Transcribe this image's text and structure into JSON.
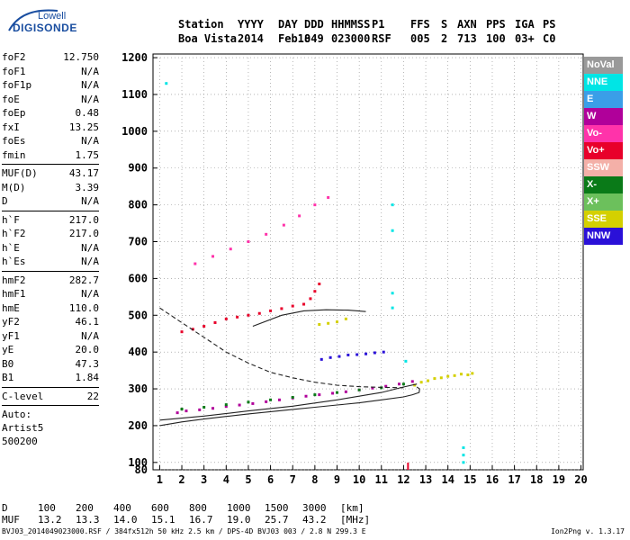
{
  "logo": {
    "line1": "Lowell",
    "line2": "DIGISONDE"
  },
  "header": {
    "row1": [
      "Station",
      "YYYY",
      "DAY",
      "DDD",
      "HHMMSS",
      "P1",
      "FFS",
      "S",
      "AXN",
      "PPS",
      "IGA",
      "PS"
    ],
    "row2": [
      "Boa Vista",
      "2014",
      "Feb18",
      "049",
      "023000",
      "RSF",
      "005",
      "2",
      "713",
      "100",
      "03+",
      "C0"
    ]
  },
  "params": [
    {
      "group": [
        {
          "name": "foF2",
          "value": "12.750"
        },
        {
          "name": "foF1",
          "value": "N/A"
        },
        {
          "name": "foF1p",
          "value": "N/A"
        },
        {
          "name": "foE",
          "value": "N/A"
        },
        {
          "name": "foEp",
          "value": "0.48"
        },
        {
          "name": "fxI",
          "value": "13.25"
        },
        {
          "name": "foEs",
          "value": "N/A"
        },
        {
          "name": "fmin",
          "value": "1.75"
        }
      ]
    },
    {
      "group": [
        {
          "name": "MUF(D)",
          "value": "43.17"
        },
        {
          "name": "M(D)",
          "value": "3.39"
        },
        {
          "name": "D",
          "value": "N/A"
        }
      ]
    },
    {
      "group": [
        {
          "name": "h`F",
          "value": "217.0"
        },
        {
          "name": "h`F2",
          "value": "217.0"
        },
        {
          "name": "h`E",
          "value": "N/A"
        },
        {
          "name": "h`Es",
          "value": "N/A"
        }
      ]
    },
    {
      "group": [
        {
          "name": "hmF2",
          "value": "282.7"
        },
        {
          "name": "hmF1",
          "value": "N/A"
        },
        {
          "name": "hmE",
          "value": "110.0"
        },
        {
          "name": "yF2",
          "value": "46.1"
        },
        {
          "name": "yF1",
          "value": "N/A"
        },
        {
          "name": "yE",
          "value": "20.0"
        },
        {
          "name": "B0",
          "value": "47.3"
        },
        {
          "name": "B1",
          "value": "1.84"
        }
      ]
    },
    {
      "group": [
        {
          "name": "C-level",
          "value": "22"
        }
      ]
    }
  ],
  "auto": {
    "line1": "Auto:",
    "line2": "Artist5",
    "line3": "500200"
  },
  "legend": [
    {
      "label": "NoVal",
      "color": "#999999"
    },
    {
      "label": "NNE",
      "color": "#00e5e5"
    },
    {
      "label": "E",
      "color": "#3a9ee8"
    },
    {
      "label": "W",
      "color": "#b0009a"
    },
    {
      "label": "Vo-",
      "color": "#ff33aa"
    },
    {
      "label": "Vo+",
      "color": "#e8002a"
    },
    {
      "label": "SSW",
      "color": "#f4b0a8"
    },
    {
      "label": "X-",
      "color": "#0a7a18"
    },
    {
      "label": "X+",
      "color": "#6cc05c"
    },
    {
      "label": "SSE",
      "color": "#d4d000"
    },
    {
      "label": "NNW",
      "color": "#2a10d8"
    }
  ],
  "muf_table": {
    "d_label": "D",
    "d_values": [
      "100",
      "200",
      "400",
      "600",
      "800",
      "1000",
      "1500",
      "3000"
    ],
    "d_unit": "[km]",
    "muf_label": "MUF",
    "muf_values": [
      "13.2",
      "13.3",
      "14.0",
      "15.1",
      "16.7",
      "19.0",
      "25.7",
      "43.2"
    ],
    "muf_unit": "[MHz]"
  },
  "footer": {
    "left": "BVJ03_2014049023000.RSF / 384fx512h 50 kHz 2.5 km / DPS-4D BVJ03 003 / 2.8 N 299.3 E",
    "right": "Ion2Png v. 1.3.17"
  },
  "chart_data": {
    "type": "scatter",
    "xlim": [
      0.7,
      20.1
    ],
    "ylim": [
      80,
      1210
    ],
    "x_ticks": [
      1,
      2,
      3,
      4,
      5,
      6,
      7,
      8,
      9,
      10,
      11,
      12,
      13,
      14,
      15,
      16,
      17,
      18,
      19,
      20
    ],
    "y_ticks": [
      80,
      100,
      200,
      300,
      400,
      500,
      600,
      700,
      800,
      900,
      1000,
      1100,
      1200
    ],
    "grid": true,
    "series": [
      {
        "name": "",
        "color": "#b0009a",
        "points": [
          [
            1.8,
            235
          ],
          [
            2.2,
            240
          ],
          [
            2.8,
            243
          ],
          [
            3.4,
            247
          ],
          [
            4.0,
            252
          ],
          [
            4.6,
            256
          ],
          [
            5.2,
            260
          ],
          [
            5.8,
            265
          ],
          [
            6.4,
            270
          ],
          [
            7.0,
            275
          ],
          [
            7.6,
            280
          ],
          [
            8.2,
            284
          ],
          [
            8.8,
            288
          ],
          [
            9.4,
            292
          ],
          [
            10.0,
            297
          ],
          [
            10.6,
            302
          ],
          [
            11.2,
            307
          ],
          [
            11.8,
            313
          ],
          [
            12.4,
            320
          ]
        ]
      },
      {
        "name": "",
        "color": "#0a7a18",
        "points": [
          [
            2.0,
            245
          ],
          [
            3.0,
            250
          ],
          [
            4.0,
            257
          ],
          [
            5.0,
            264
          ],
          [
            6.0,
            270
          ],
          [
            7.0,
            277
          ],
          [
            8.0,
            284
          ],
          [
            9.0,
            290
          ],
          [
            10.0,
            297
          ],
          [
            11.0,
            303
          ],
          [
            12.0,
            313
          ]
        ]
      },
      {
        "name": "",
        "color": "#d4d000",
        "points": [
          [
            12.5,
            310
          ],
          [
            12.8,
            318
          ],
          [
            13.1,
            322
          ],
          [
            13.4,
            328
          ],
          [
            13.7,
            330
          ],
          [
            14.0,
            334
          ],
          [
            14.3,
            336
          ],
          [
            14.6,
            340
          ],
          [
            14.9,
            338
          ],
          [
            15.1,
            342
          ],
          [
            8.2,
            475
          ],
          [
            8.6,
            478
          ],
          [
            9.0,
            482
          ],
          [
            9.4,
            490
          ]
        ]
      },
      {
        "name": "",
        "color": "#2a10d8",
        "points": [
          [
            8.3,
            380
          ],
          [
            8.7,
            385
          ],
          [
            9.1,
            388
          ],
          [
            9.5,
            392
          ],
          [
            9.9,
            393
          ],
          [
            10.3,
            395
          ],
          [
            10.7,
            398
          ],
          [
            11.1,
            400
          ]
        ]
      },
      {
        "name": "",
        "color": "#e8002a",
        "points": [
          [
            2.0,
            455
          ],
          [
            2.5,
            462
          ],
          [
            3.0,
            470
          ],
          [
            3.5,
            480
          ],
          [
            4.0,
            490
          ],
          [
            4.5,
            495
          ],
          [
            5.0,
            500
          ],
          [
            5.5,
            505
          ],
          [
            6.0,
            512
          ],
          [
            6.5,
            518
          ],
          [
            7.0,
            525
          ],
          [
            7.5,
            530
          ],
          [
            7.8,
            545
          ],
          [
            8.0,
            565
          ],
          [
            8.2,
            585
          ]
        ]
      },
      {
        "name": "",
        "color": "#ff33aa",
        "points": [
          [
            2.6,
            640
          ],
          [
            3.4,
            660
          ],
          [
            4.2,
            680
          ],
          [
            5.0,
            700
          ],
          [
            5.8,
            720
          ],
          [
            6.6,
            745
          ],
          [
            7.3,
            770
          ],
          [
            8.0,
            800
          ],
          [
            8.6,
            820
          ]
        ]
      },
      {
        "name": "",
        "color": "#00e5e5",
        "points": [
          [
            1.3,
            1130
          ],
          [
            11.5,
            800
          ],
          [
            11.5,
            730
          ],
          [
            11.5,
            560
          ],
          [
            11.5,
            520
          ],
          [
            12.1,
            375
          ],
          [
            14.7,
            140
          ],
          [
            14.7,
            120
          ],
          [
            14.7,
            100
          ]
        ]
      }
    ],
    "curves": [
      {
        "style": "solid",
        "points": [
          [
            1.0,
            200
          ],
          [
            2.0,
            210
          ],
          [
            3.0,
            218
          ],
          [
            4.0,
            225
          ],
          [
            5.0,
            232
          ],
          [
            6.0,
            238
          ],
          [
            7.0,
            244
          ],
          [
            8.0,
            250
          ],
          [
            9.0,
            256
          ],
          [
            10.0,
            262
          ],
          [
            11.0,
            270
          ],
          [
            12.0,
            278
          ],
          [
            12.4,
            284
          ],
          [
            12.7,
            290
          ],
          [
            12.72,
            300
          ],
          [
            12.6,
            305
          ]
        ]
      },
      {
        "style": "solid",
        "points": [
          [
            1.0,
            215
          ],
          [
            3.0,
            226
          ],
          [
            5.0,
            240
          ],
          [
            7.0,
            253
          ],
          [
            9.0,
            270
          ],
          [
            11.0,
            290
          ],
          [
            12.0,
            305
          ],
          [
            12.6,
            313
          ]
        ]
      },
      {
        "style": "dashed",
        "points": [
          [
            1.0,
            520
          ],
          [
            2.0,
            480
          ],
          [
            3.0,
            440
          ],
          [
            4.0,
            400
          ],
          [
            5.0,
            370
          ],
          [
            6.0,
            345
          ],
          [
            7.0,
            330
          ],
          [
            8.0,
            318
          ],
          [
            9.0,
            310
          ],
          [
            10.0,
            306
          ],
          [
            11.0,
            304
          ],
          [
            12.0,
            303
          ]
        ]
      },
      {
        "style": "solid",
        "points": [
          [
            5.2,
            470
          ],
          [
            6.5,
            500
          ],
          [
            7.5,
            512
          ],
          [
            8.5,
            515
          ],
          [
            9.5,
            514
          ],
          [
            10.3,
            510
          ]
        ]
      }
    ],
    "markers": [
      {
        "x": 12.2,
        "y": 80,
        "color": "#e8002a"
      }
    ]
  }
}
